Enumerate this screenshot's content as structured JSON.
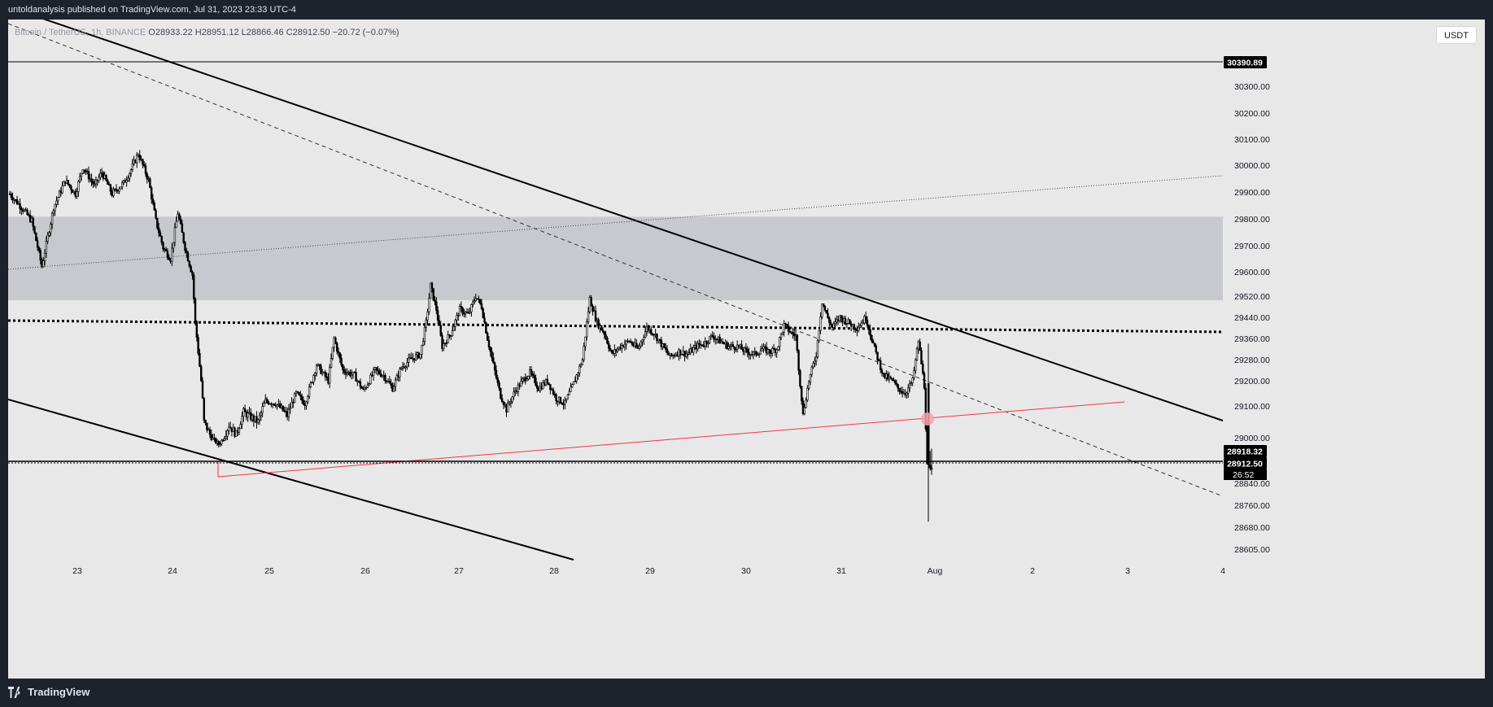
{
  "header": {
    "published_text": "untoldanalysis published on TradingView.com, Jul 31, 2023 23:33 UTC-4"
  },
  "legend": {
    "symbol": "Bitcoin / TetherUS, 1h, BINANCE",
    "open": "O28933.22",
    "high": "H28951.12",
    "low": "L28866.46",
    "close": "C28912.50",
    "change": "−20.72 (−0.07%)"
  },
  "currency_button": "USDT",
  "price_labels": {
    "horizontal_line": "30390.89",
    "high_price": "28918.32",
    "last_price": "28912.50",
    "countdown": "26:52"
  },
  "footer": {
    "brand": "TradingView"
  },
  "colors": {
    "background": "#1e222d",
    "chart_bg": "#e8e8e8",
    "zone": "#c8c9ce",
    "red_line": "#f23645",
    "ink": "#000000"
  },
  "chart_data": {
    "type": "candlestick",
    "y_ticks": [
      "30300.00",
      "30200.00",
      "30100.00",
      "30000.00",
      "29900.00",
      "29800.00",
      "29700.00",
      "29600.00",
      "29520.00",
      "29440.00",
      "29360.00",
      "29280.00",
      "29200.00",
      "29100.00",
      "29000.00",
      "28840.00",
      "28760.00",
      "28680.00",
      "28605.00"
    ],
    "x_ticks": [
      "23",
      "24",
      "25",
      "26",
      "27",
      "28",
      "29",
      "30",
      "31",
      "Aug",
      "2",
      "3",
      "4"
    ],
    "horizontal_level": 30390.89,
    "zone": [
      29505,
      29815
    ],
    "dotted_level_left": 29440,
    "dotted_level_right": 29395,
    "last_price": 28912.5,
    "candle_path": [
      [
        0,
        29900
      ],
      [
        8,
        29850
      ],
      [
        15,
        29800
      ],
      [
        22,
        29630
      ],
      [
        30,
        29850
      ],
      [
        38,
        29950
      ],
      [
        45,
        29900
      ],
      [
        50,
        30000
      ],
      [
        58,
        29930
      ],
      [
        63,
        29980
      ],
      [
        70,
        29900
      ],
      [
        78,
        29940
      ],
      [
        83,
        29990
      ],
      [
        88,
        30050
      ],
      [
        95,
        29950
      ],
      [
        100,
        29800
      ],
      [
        105,
        29700
      ],
      [
        110,
        29660
      ],
      [
        115,
        29830
      ],
      [
        120,
        29700
      ],
      [
        125,
        29600
      ],
      [
        127,
        29420
      ],
      [
        131,
        29200
      ],
      [
        133,
        29050
      ],
      [
        138,
        29000
      ],
      [
        143,
        28960
      ],
      [
        150,
        29040
      ],
      [
        155,
        29010
      ],
      [
        160,
        29080
      ],
      [
        170,
        29050
      ],
      [
        175,
        29120
      ],
      [
        182,
        29110
      ],
      [
        190,
        29070
      ],
      [
        196,
        29150
      ],
      [
        202,
        29110
      ],
      [
        210,
        29260
      ],
      [
        218,
        29200
      ],
      [
        222,
        29360
      ],
      [
        228,
        29240
      ],
      [
        236,
        29220
      ],
      [
        242,
        29160
      ],
      [
        250,
        29240
      ],
      [
        256,
        29220
      ],
      [
        262,
        29170
      ],
      [
        268,
        29250
      ],
      [
        274,
        29280
      ],
      [
        281,
        29300
      ],
      [
        285,
        29420
      ],
      [
        288,
        29560
      ],
      [
        292,
        29470
      ],
      [
        296,
        29330
      ],
      [
        302,
        29380
      ],
      [
        308,
        29470
      ],
      [
        314,
        29450
      ],
      [
        319,
        29520
      ],
      [
        323,
        29480
      ],
      [
        327,
        29360
      ],
      [
        331,
        29260
      ],
      [
        336,
        29140
      ],
      [
        340,
        29090
      ],
      [
        346,
        29160
      ],
      [
        351,
        29200
      ],
      [
        356,
        29230
      ],
      [
        362,
        29170
      ],
      [
        368,
        29200
      ],
      [
        374,
        29130
      ],
      [
        380,
        29110
      ],
      [
        386,
        29190
      ],
      [
        392,
        29280
      ],
      [
        397,
        29510
      ],
      [
        402,
        29420
      ],
      [
        407,
        29380
      ],
      [
        412,
        29300
      ],
      [
        418,
        29330
      ],
      [
        424,
        29350
      ],
      [
        430,
        29320
      ],
      [
        436,
        29400
      ],
      [
        441,
        29380
      ],
      [
        447,
        29330
      ],
      [
        452,
        29290
      ],
      [
        458,
        29310
      ],
      [
        464,
        29300
      ],
      [
        470,
        29330
      ],
      [
        475,
        29340
      ],
      [
        481,
        29370
      ],
      [
        486,
        29350
      ],
      [
        492,
        29330
      ],
      [
        498,
        29330
      ],
      [
        504,
        29310
      ],
      [
        510,
        29300
      ],
      [
        515,
        29320
      ],
      [
        520,
        29310
      ],
      [
        525,
        29320
      ],
      [
        530,
        29410
      ],
      [
        535,
        29380
      ],
      [
        538,
        29370
      ],
      [
        543,
        29070
      ],
      [
        547,
        29200
      ],
      [
        552,
        29300
      ],
      [
        556,
        29500
      ],
      [
        559,
        29450
      ],
      [
        563,
        29400
      ],
      [
        568,
        29440
      ],
      [
        574,
        29420
      ],
      [
        580,
        29400
      ],
      [
        586,
        29440
      ],
      [
        592,
        29320
      ],
      [
        598,
        29220
      ],
      [
        604,
        29200
      ],
      [
        608,
        29170
      ],
      [
        613,
        29150
      ],
      [
        618,
        29200
      ],
      [
        622,
        29350
      ],
      [
        626,
        29180
      ],
      [
        628,
        28900
      ],
      [
        631,
        28880
      ]
    ]
  }
}
